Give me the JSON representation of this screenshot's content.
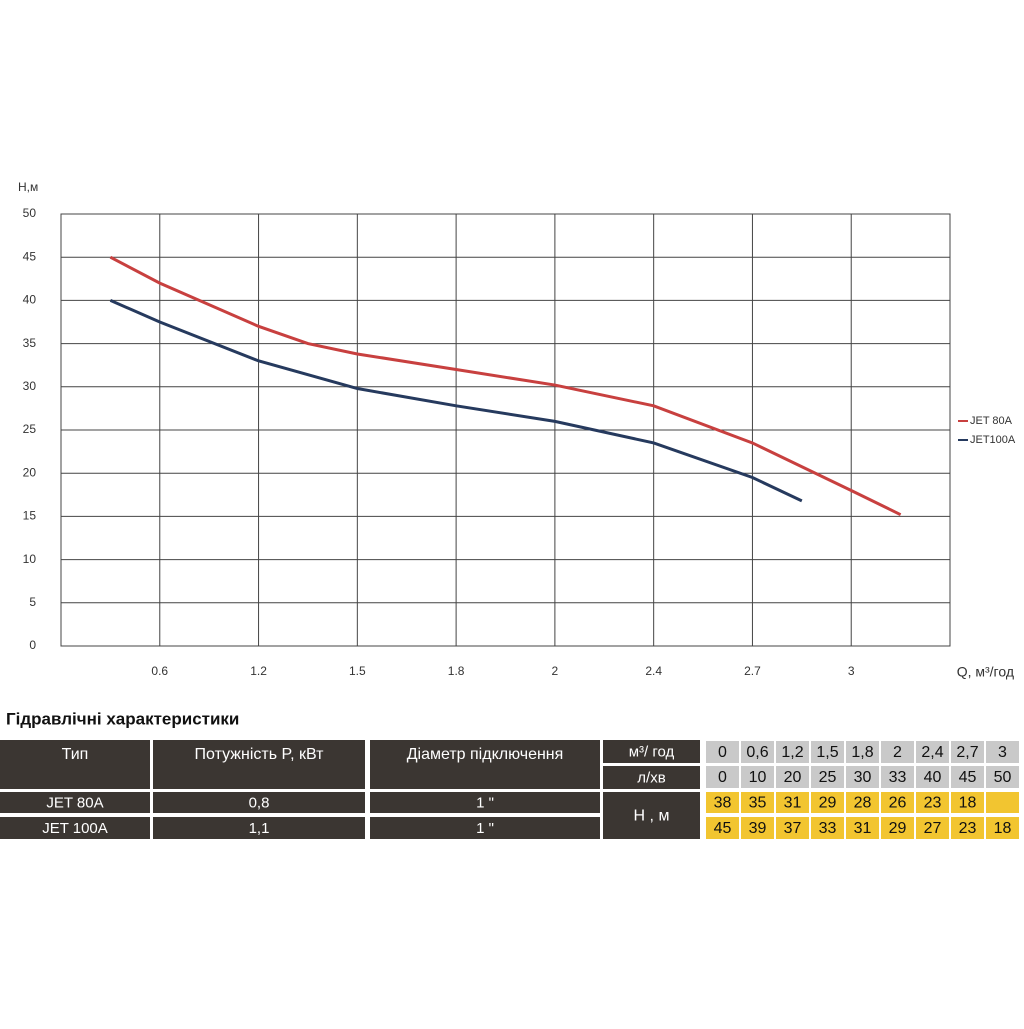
{
  "chart_data": {
    "type": "line",
    "y_label": "Н,м",
    "x_label": "Q, м³/год",
    "xlim": [
      0,
      3.3
    ],
    "xticks": [
      0.6,
      1.2,
      1.5,
      1.8,
      2,
      2.4,
      2.7,
      3
    ],
    "ylim": [
      0,
      50
    ],
    "yticks": [
      0,
      5,
      10,
      15,
      20,
      25,
      30,
      35,
      40,
      45,
      50
    ],
    "grid": true,
    "series": [
      {
        "name": "JET 80A",
        "color": "#c8403f",
        "x": [
          0.3,
          0.6,
          1.2,
          1.35,
          1.5,
          1.8,
          2,
          2.4,
          2.7,
          3,
          3.15
        ],
        "values": [
          45,
          42,
          37,
          35,
          33.8,
          32,
          30.2,
          27.8,
          23.5,
          18,
          15.2
        ]
      },
      {
        "name": "JET100A",
        "color": "#263a5e",
        "x": [
          0.3,
          0.6,
          1.2,
          1.5,
          1.8,
          2,
          2.4,
          2.7,
          2.85
        ],
        "values": [
          40,
          37.5,
          33,
          29.8,
          27.8,
          26,
          23.5,
          19.5,
          16.8
        ]
      }
    ]
  },
  "table": {
    "title": "Гідравлічні характеристики",
    "headers": [
      "Тип",
      "Потужність  P, кВт",
      "Діаметр підключення"
    ],
    "rows": [
      [
        "JET 80A",
        "0,8",
        "1 \""
      ],
      [
        "JET 100A",
        "1,1",
        "1 \""
      ]
    ],
    "flow_m3_label": "м³/ год",
    "flow_m3": [
      "0",
      "0,6",
      "1,2",
      "1,5",
      "1,8",
      "2",
      "2,4",
      "2,7",
      "3"
    ],
    "flow_lpm_label": "л/хв",
    "flow_lpm": [
      "0",
      "10",
      "20",
      "25",
      "30",
      "33",
      "40",
      "45",
      "50"
    ],
    "head_label": "Н , м",
    "head": [
      [
        "38",
        "35",
        "31",
        "29",
        "28",
        "26",
        "23",
        "18",
        null
      ],
      [
        "45",
        "39",
        "37",
        "33",
        "31",
        "29",
        "27",
        "23",
        "18"
      ]
    ]
  }
}
